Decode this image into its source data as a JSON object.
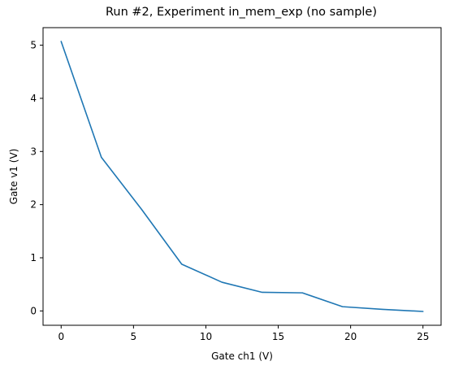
{
  "chart_data": {
    "type": "line",
    "title": "Run #2, Experiment in_mem_exp (no sample)",
    "xlabel": "Gate ch1 (V)",
    "ylabel": "Gate v1 (V)",
    "xlim": [
      -1.25,
      26.25
    ],
    "ylim": [
      -0.27,
      5.33
    ],
    "xticks": [
      0,
      5,
      10,
      15,
      20,
      25
    ],
    "yticks": [
      0,
      1,
      2,
      3,
      4,
      5
    ],
    "grid": false,
    "series": [
      {
        "color": "#1f77b4",
        "x": [
          0,
          2.78,
          5.56,
          8.33,
          11.11,
          13.89,
          16.67,
          19.44,
          22.22,
          25
        ],
        "y": [
          5.07,
          2.89,
          1.91,
          0.88,
          0.54,
          0.35,
          0.34,
          0.08,
          0.03,
          -0.01
        ]
      }
    ]
  }
}
